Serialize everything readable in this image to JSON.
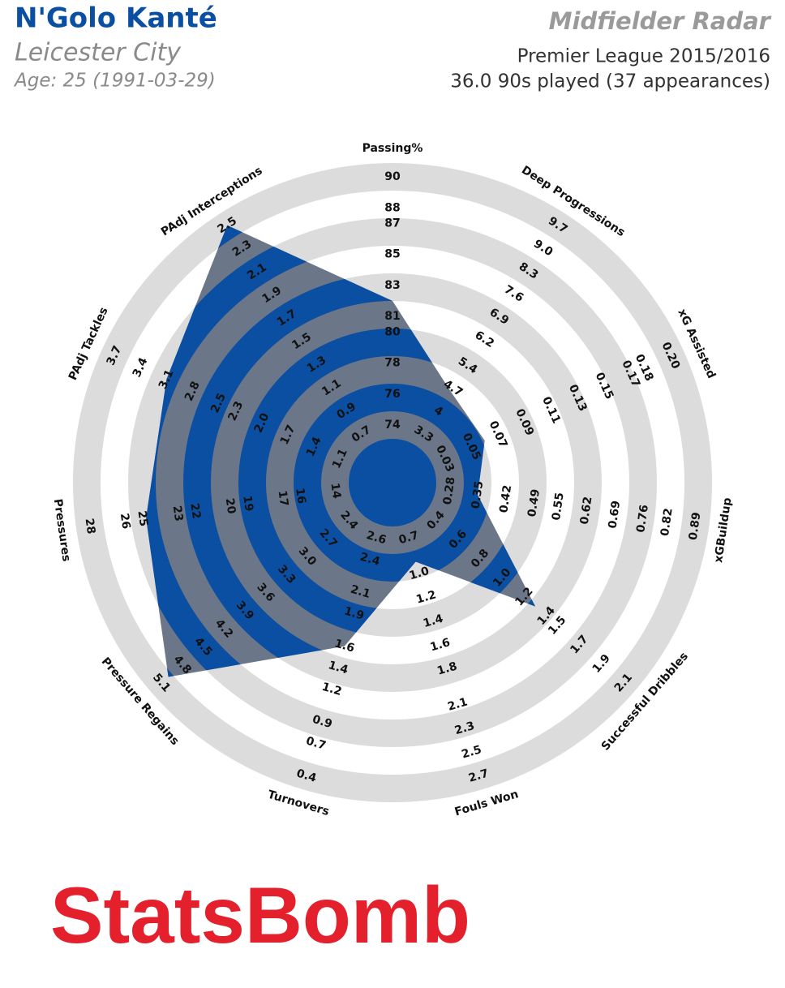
{
  "header": {
    "player": "N'Golo Kanté",
    "team": "Leicester City",
    "age": "Age: 25 (1991-03-29)",
    "radar_title": "Midfielder Radar",
    "competition": "Premier League 2015/2016",
    "minutes": "36.0 90s played (37 appearances)"
  },
  "chart_data": {
    "type": "radar",
    "categories": [
      "Passing%",
      "Deep Progressions",
      "xG Assisted",
      "xGBuildup",
      "Successful Dribbles",
      "Fouls Won",
      "Turnovers",
      "Pressure Regains",
      "Pressures",
      "PAdj Tackles",
      "PAdj Interceptions"
    ],
    "values": [
      82,
      4.6,
      0.06,
      0.35,
      1.3,
      0.9,
      1.6,
      5.0,
      24.8,
      3.1,
      2.5
    ],
    "color": "#0b4fa3",
    "alt_color": "#6b7789",
    "band_color": "#dcdcdc",
    "axis_limits": [
      [
        74,
        90
      ],
      [
        3.3,
        9.7
      ],
      [
        0.03,
        0.2
      ],
      [
        0.28,
        0.89
      ],
      [
        0.4,
        2.1
      ],
      [
        0.7,
        2.7
      ],
      [
        2.6,
        0.4
      ],
      [
        2.4,
        5.1
      ],
      [
        14,
        28
      ],
      [
        1.1,
        3.7
      ],
      [
        0.7,
        2.5
      ]
    ],
    "axis_ticks": [
      [
        74,
        76,
        78,
        80,
        81,
        83,
        85,
        87,
        88,
        90
      ],
      [
        3.3,
        4,
        4.7,
        5.4,
        6.2,
        6.9,
        7.6,
        8.3,
        {
          "value": 9,
          "label": "9.0"
        },
        9.7
      ],
      [
        0.03,
        0.05,
        0.07,
        0.09,
        0.11,
        0.13,
        0.15,
        0.17,
        0.18,
        {
          "value": 0.2,
          "label": "0.20"
        }
      ],
      [
        0.28,
        0.35,
        0.42,
        0.49,
        0.55,
        0.62,
        0.69,
        0.76,
        0.82,
        0.89
      ],
      [
        0.4,
        0.6,
        0.8,
        {
          "value": 1,
          "label": "1.0"
        },
        1.2,
        1.4,
        1.5,
        1.7,
        1.9,
        2.1
      ],
      [
        0.7,
        {
          "value": 1,
          "label": "1.0"
        },
        1.2,
        1.4,
        1.6,
        1.8,
        2.1,
        2.3,
        2.5,
        2.7
      ],
      [
        2.6,
        2.4,
        2.1,
        1.9,
        1.6,
        1.4,
        1.2,
        0.9,
        0.7,
        0.4
      ],
      [
        2.4,
        2.7,
        {
          "value": 3,
          "label": "3.0"
        },
        3.3,
        3.6,
        3.9,
        4.2,
        4.5,
        4.8,
        5.1
      ],
      [
        14,
        16,
        17,
        19,
        20,
        22,
        23,
        25,
        26,
        28
      ],
      [
        1.1,
        1.4,
        1.7,
        {
          "value": 2,
          "label": "2.0"
        },
        2.3,
        2.5,
        2.8,
        3.1,
        3.4,
        3.7
      ],
      [
        0.7,
        0.9,
        1.1,
        1.3,
        1.5,
        1.7,
        1.9,
        2.1,
        2.3,
        2.5
      ]
    ]
  },
  "logo": "StatsBomb"
}
